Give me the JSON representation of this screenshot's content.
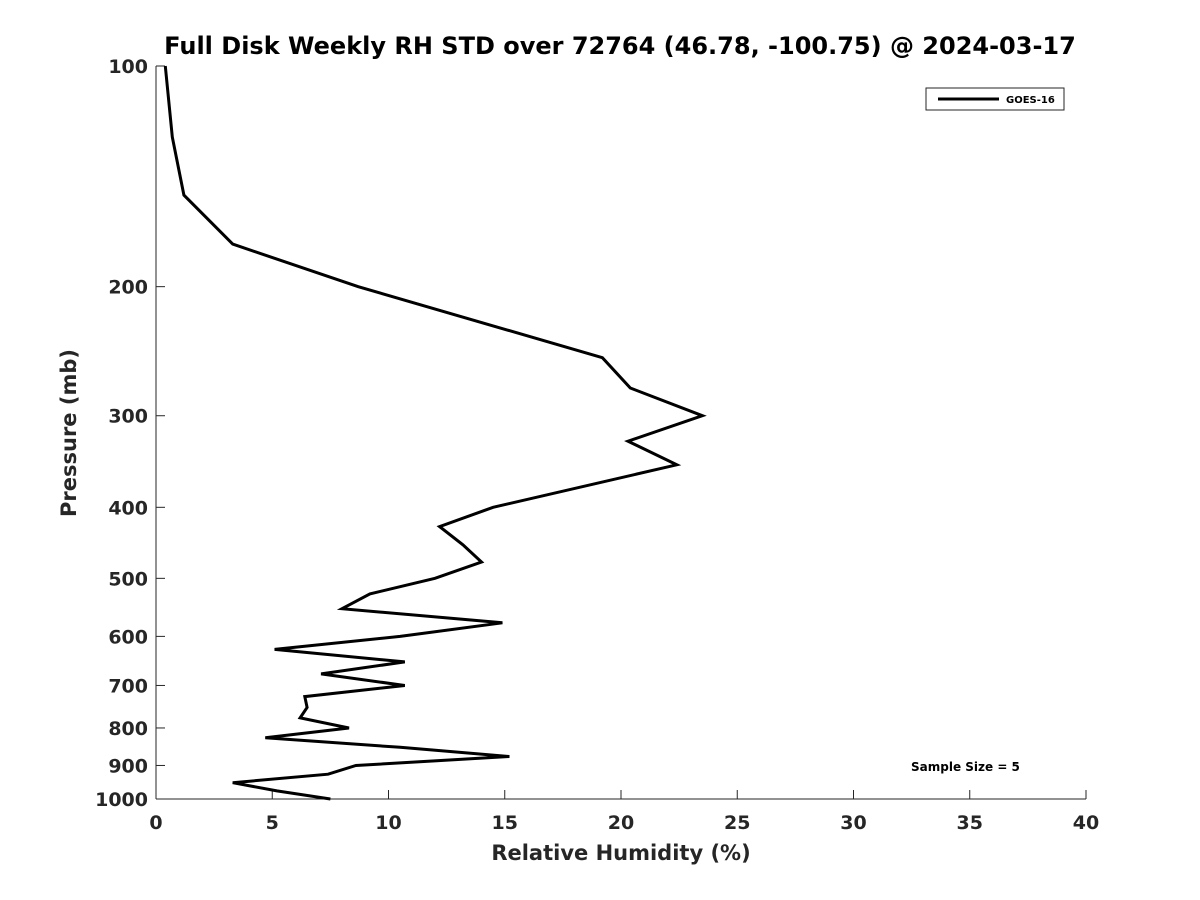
{
  "chart_data": {
    "type": "line",
    "title": "Full Disk Weekly RH STD over 72764 (46.78, -100.75) @ 2024-03-17",
    "xlabel": "Relative Humidity (%)",
    "ylabel": "Pressure (mb)",
    "xlim": [
      0,
      40
    ],
    "ylim": [
      1000,
      100
    ],
    "yscale": "log",
    "x_ticks": [
      0,
      5,
      10,
      15,
      20,
      25,
      30,
      35,
      40
    ],
    "y_ticks": [
      100,
      200,
      300,
      400,
      500,
      600,
      700,
      800,
      900,
      1000
    ],
    "legend_position": "top-right",
    "grid": false,
    "annotation": "Sample Size = 5",
    "series": [
      {
        "name": "GOES-16",
        "color": "#000000",
        "points": [
          {
            "rh": 0.4,
            "p": 100
          },
          {
            "rh": 0.7,
            "p": 125
          },
          {
            "rh": 1.2,
            "p": 150
          },
          {
            "rh": 3.3,
            "p": 175
          },
          {
            "rh": 8.7,
            "p": 200
          },
          {
            "rh": 19.2,
            "p": 250
          },
          {
            "rh": 20.4,
            "p": 275
          },
          {
            "rh": 23.5,
            "p": 300
          },
          {
            "rh": 20.3,
            "p": 325
          },
          {
            "rh": 22.4,
            "p": 350
          },
          {
            "rh": 14.5,
            "p": 400
          },
          {
            "rh": 12.2,
            "p": 425
          },
          {
            "rh": 13.2,
            "p": 450
          },
          {
            "rh": 14.0,
            "p": 475
          },
          {
            "rh": 12.0,
            "p": 500
          },
          {
            "rh": 9.2,
            "p": 525
          },
          {
            "rh": 8.0,
            "p": 550
          },
          {
            "rh": 14.9,
            "p": 575
          },
          {
            "rh": 10.5,
            "p": 600
          },
          {
            "rh": 5.1,
            "p": 625
          },
          {
            "rh": 10.7,
            "p": 650
          },
          {
            "rh": 7.1,
            "p": 675
          },
          {
            "rh": 10.7,
            "p": 700
          },
          {
            "rh": 6.4,
            "p": 725
          },
          {
            "rh": 6.5,
            "p": 750
          },
          {
            "rh": 6.2,
            "p": 775
          },
          {
            "rh": 8.3,
            "p": 800
          },
          {
            "rh": 4.7,
            "p": 825
          },
          {
            "rh": 10.5,
            "p": 850
          },
          {
            "rh": 15.2,
            "p": 875
          },
          {
            "rh": 8.6,
            "p": 900
          },
          {
            "rh": 7.4,
            "p": 925
          },
          {
            "rh": 3.3,
            "p": 950
          },
          {
            "rh": 5.2,
            "p": 975
          },
          {
            "rh": 7.5,
            "p": 1000
          }
        ]
      }
    ]
  }
}
